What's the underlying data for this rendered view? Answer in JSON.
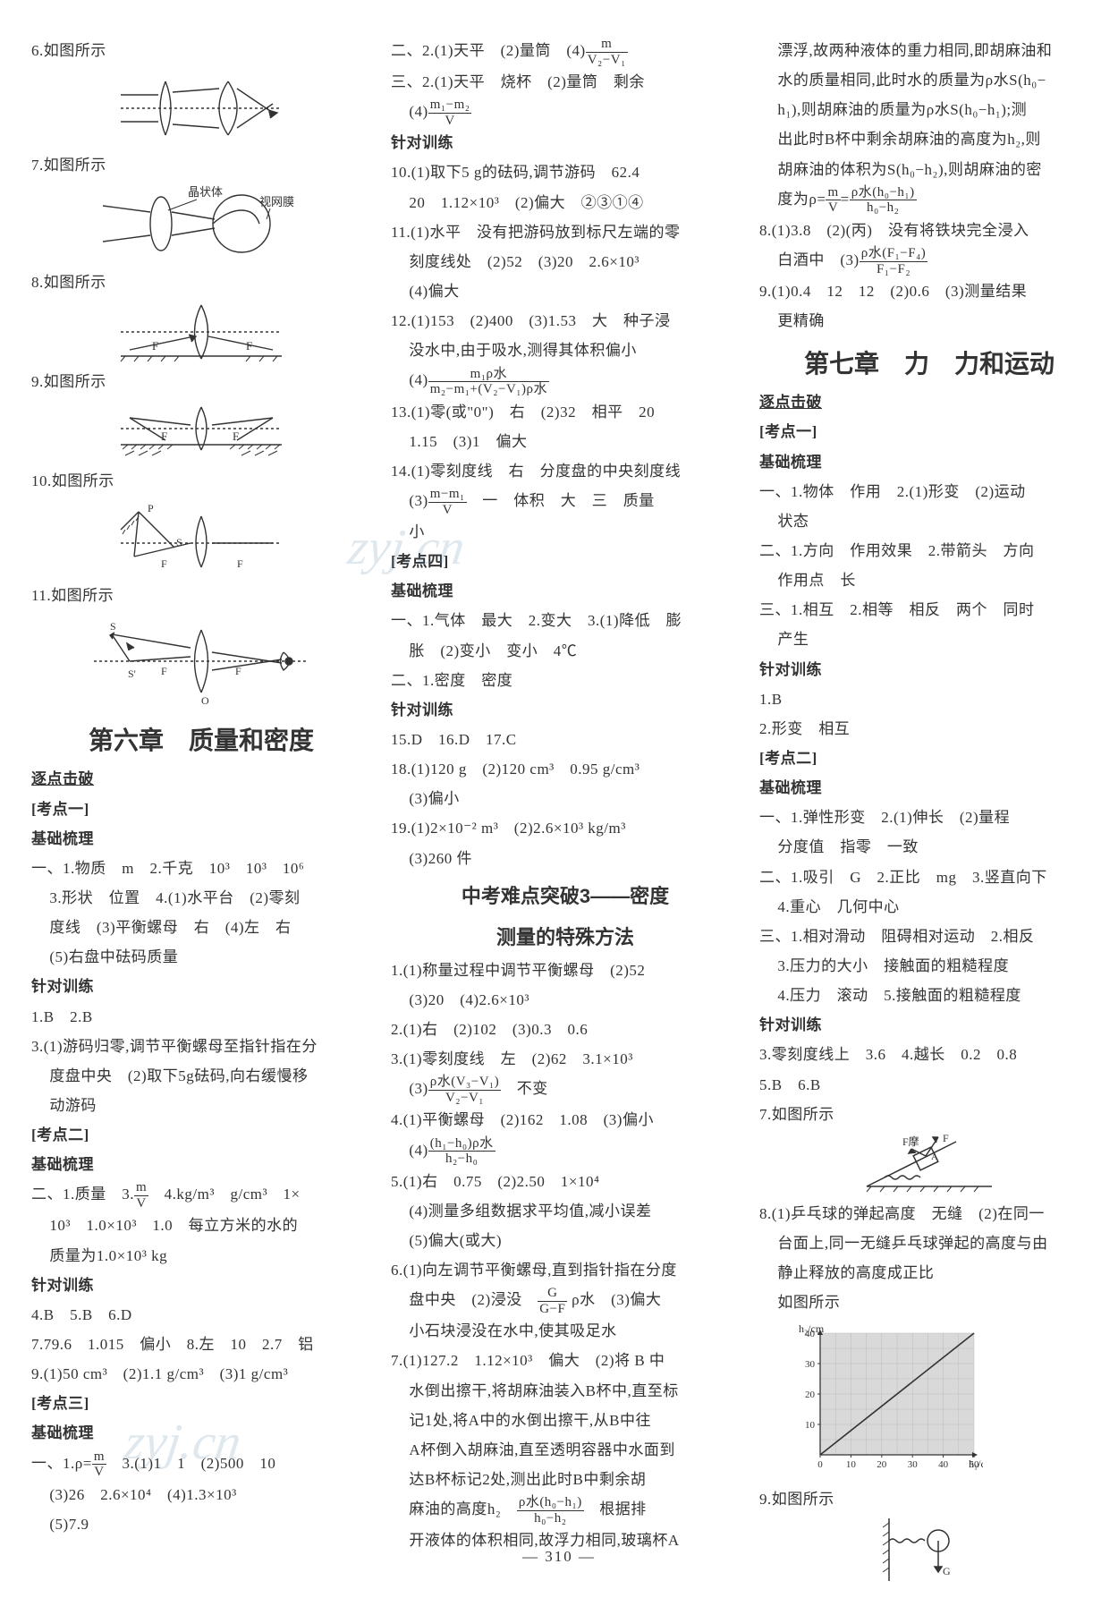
{
  "page_number": "310",
  "watermark": "zyj.cn",
  "col1": {
    "items": [
      "6.如图所示",
      "7.如图所示",
      "8.如图所示",
      "9.如图所示",
      "10.如图所示",
      "11.如图所示"
    ],
    "fig7_labels": {
      "l1": "晶状体",
      "l2": "视网膜"
    },
    "chapter": "第六章　质量和密度",
    "sec1": "逐点击破",
    "kd1": "[考点一]",
    "jc": "基础梳理",
    "b1": "一、1.物质　m　2.千克　10³　10³　10⁶",
    "b2": "3.形状　位置　4.(1)水平台　(2)零刻",
    "b3": "度线　(3)平衡螺母　右　(4)左　右",
    "b4": "(5)右盘中砝码质量",
    "zd": "针对训练",
    "t1": "1.B　2.B",
    "t2": "3.(1)游码归零,调节平衡螺母至指针指在分",
    "t3": "度盘中央　(2)取下5g砝码,向右缓慢移",
    "t4": "动游码",
    "kd2": "[考点二]",
    "c1_pre": "二、1.质量　3.",
    "c1_post": "　4.kg/m³　g/cm³　1×",
    "c2": "10³　1.0×10³　1.0　每立方米的水的",
    "c3": "质量为1.0×10³ kg",
    "d1": "4.B　5.B　6.D",
    "d2": "7.79.6　1.015　偏小　8.左　10　2.7　铝",
    "d3": "9.(1)50 cm³　(2)1.1 g/cm³　(3)1 g/cm³",
    "kd3": "[考点三]",
    "e1_pre": "一、1.ρ=",
    "e1_post": "　3.(1)1　1　(2)500　10",
    "e2": "(3)26　2.6×10⁴　(4)1.3×10³",
    "e3": "(5)7.9",
    "frac_mv": {
      "num": "m",
      "den": "V"
    }
  },
  "col2": {
    "a1_pre": "二、2.(1)天平　(2)量筒　(4)",
    "a2": "三、2.(1)天平　烧杯　(2)量筒　剩余",
    "a3_pre": "(4)",
    "zd": "针对训练",
    "b1": "10.(1)取下5 g的砝码,调节游码　62.4",
    "b2": "20　1.12×10³　(2)偏大　②③①④",
    "b3": "11.(1)水平　没有把游码放到标尺左端的零",
    "b4": "刻度线处　(2)52　(3)20　2.6×10³",
    "b5": "(4)偏大",
    "b6": "12.(1)153　(2)400　(3)1.53　大　种子浸",
    "b7": "没水中,由于吸水,测得其体积偏小",
    "b8_pre": "(4)",
    "b9": "13.(1)零(或\"0\")　右　(2)32　相平　20",
    "b10": "1.15　(3)1　偏大",
    "b11": "14.(1)零刻度线　右　分度盘的中央刻度线",
    "b12_pre": "(3)",
    "b12_post": "　一　体积　大　三　质量",
    "b13": "小",
    "kd4": "[考点四]",
    "jc": "基础梳理",
    "c1": "一、1.气体　最大　2.变大　3.(1)降低　膨",
    "c2": "胀　(2)变小　变小　4℃",
    "c3": "二、1.密度　密度",
    "d1": "15.D　16.D　17.C",
    "d2": "18.(1)120 g　(2)120 cm³　0.95 g/cm³",
    "d3": "(3)偏小",
    "d4": "19.(1)2×10⁻² m³　(2)2.6×10³ kg/m³",
    "d5": "(3)260 件",
    "sec_title1": "中考难点突破3——密度",
    "sec_title2": "测量的特殊方法",
    "e1": "1.(1)称量过程中调节平衡螺母　(2)52",
    "e2": "(3)20　(4)2.6×10³",
    "e3": "2.(1)右　(2)102　(3)0.3　0.6",
    "e4": "3.(1)零刻度线　左　(2)62　3.1×10³",
    "e5_pre": "(3)",
    "e5_post": "　不变",
    "e6": "4.(1)平衡螺母　(2)162　1.08　(3)偏小",
    "e7_pre": "(4)",
    "e8": "5.(1)右　0.75　(2)2.50　1×10⁴",
    "e9": "(4)测量多组数据求平均值,减小误差",
    "e10": "(5)偏大(或大)",
    "e11_pre": "6.(1)向左调节平衡螺母,直到指针指在分度",
    "e11_mid": "盘中央　(2)浸没　",
    "e11_post": " ρ水　(3)偏大",
    "e12": "小石块浸没在水中,使其吸足水",
    "f1": "7.(1)127.2　1.12×10³　偏大　(2)将 B 中",
    "f2": "水倒出擦干,将胡麻油装入B杯中,直至标",
    "f3": "记1处,将A中的水倒出擦干,从B中往",
    "f4": "A杯倒入胡麻油,直至透明容器中水面到",
    "f5": "达B杯标记2处,测出此时B中剩余胡",
    "f6_pre": "麻油的高度h₂　",
    "f6_post": "　根据排",
    "f7": "开液体的体积相同,故浮力相同,玻璃杯A",
    "frac1": {
      "num": "m",
      "den": "V₂−V₁"
    },
    "frac2": {
      "num": "m₁−m₂",
      "den": "V"
    },
    "frac3": {
      "num": "m₁ρ水",
      "den": "m₂−m₁+(V₂−V₁)ρ水"
    },
    "frac4": {
      "num": "m−m₁",
      "den": "V"
    },
    "frac5": {
      "num": "ρ水(V₃−V₁)",
      "den": "V₂−V₁"
    },
    "frac6": {
      "num": "(h₁−h₀)ρ水",
      "den": "h₂−h₀"
    },
    "frac7": {
      "num": "G",
      "den": "G−F"
    },
    "frac8": {
      "num": "ρ水(h₀−h₁)",
      "den": "h₀−h₂"
    }
  },
  "col3": {
    "a1": "漂浮,故两种液体的重力相同,即胡麻油和",
    "a2": "水的质量相同,此时水的质量为ρ水S(h₀−",
    "a3": "h₁),则胡麻油的质量为ρ水S(h₀−h₁);测",
    "a4": "出此时B杯中剩余胡麻油的高度为h₂,则",
    "a5": "胡麻油的体积为S(h₀−h₂),则胡麻油的密",
    "a6_pre": "度为ρ=",
    "a6_mid": "=",
    "b1": "8.(1)3.8　(2)(丙)　没有将铁块完全浸入",
    "b2_pre": "白酒中　(3)",
    "b3": "9.(1)0.4　12　12　(2)0.6　(3)测量结果",
    "b4": "更精确",
    "chapter": "第七章　力　力和运动",
    "sec1": "逐点击破",
    "kd1": "[考点一]",
    "jc": "基础梳理",
    "c1": "一、1.物体　作用　2.(1)形变　(2)运动",
    "c2": "状态",
    "c3": "二、1.方向　作用效果　2.带箭头　方向",
    "c4": "作用点　长",
    "c5": "三、1.相互　2.相等　相反　两个　同时",
    "c6": "产生",
    "zd": "针对训练",
    "d1": "1.B",
    "d2": "2.形变　相互",
    "kd2": "[考点二]",
    "e1": "一、1.弹性形变　2.(1)伸长　(2)量程",
    "e2": "分度值　指零　一致",
    "e3": "二、1.吸引　G　2.正比　mg　3.竖直向下",
    "e4": "4.重心　几何中心",
    "e5": "三、1.相对滑动　阻碍相对运动　2.相反",
    "e6": "3.压力的大小　接触面的粗糙程度",
    "e7": "4.压力　滚动　5.接触面的粗糙程度",
    "f1": "3.零刻度线上　3.6　4.越长　0.2　0.8",
    "f2": "5.B　6.B",
    "f3": "7.如图所示",
    "g1": "8.(1)乒乓球的弹起高度　无缝　(2)在同一",
    "g2": "台面上,同一无缝乒乓球弹起的高度与由",
    "g3": "静止释放的高度成正比",
    "g4": "如图所示",
    "h1": "9.如图所示",
    "frac_mv": {
      "num": "m",
      "den": "V"
    },
    "frac_rho": {
      "num": "ρ水(h₀−h₁)",
      "den": "h₀−h₂"
    },
    "frac_f": {
      "num": "ρ水(F₁−F₄)",
      "den": "F₁−F₂"
    },
    "chart": {
      "ylabel": "h₂/cm",
      "xlabel": "h₁/cm",
      "ymax": 40,
      "xmax": 50,
      "yticks": [
        10,
        20,
        30,
        40
      ],
      "xticks": [
        0,
        10,
        20,
        30,
        40,
        50
      ],
      "bg": "#d9d9d9",
      "line_color": "#333333",
      "point_x": 50,
      "point_y": 40,
      "origin_x": 0,
      "origin_y": 0
    }
  }
}
